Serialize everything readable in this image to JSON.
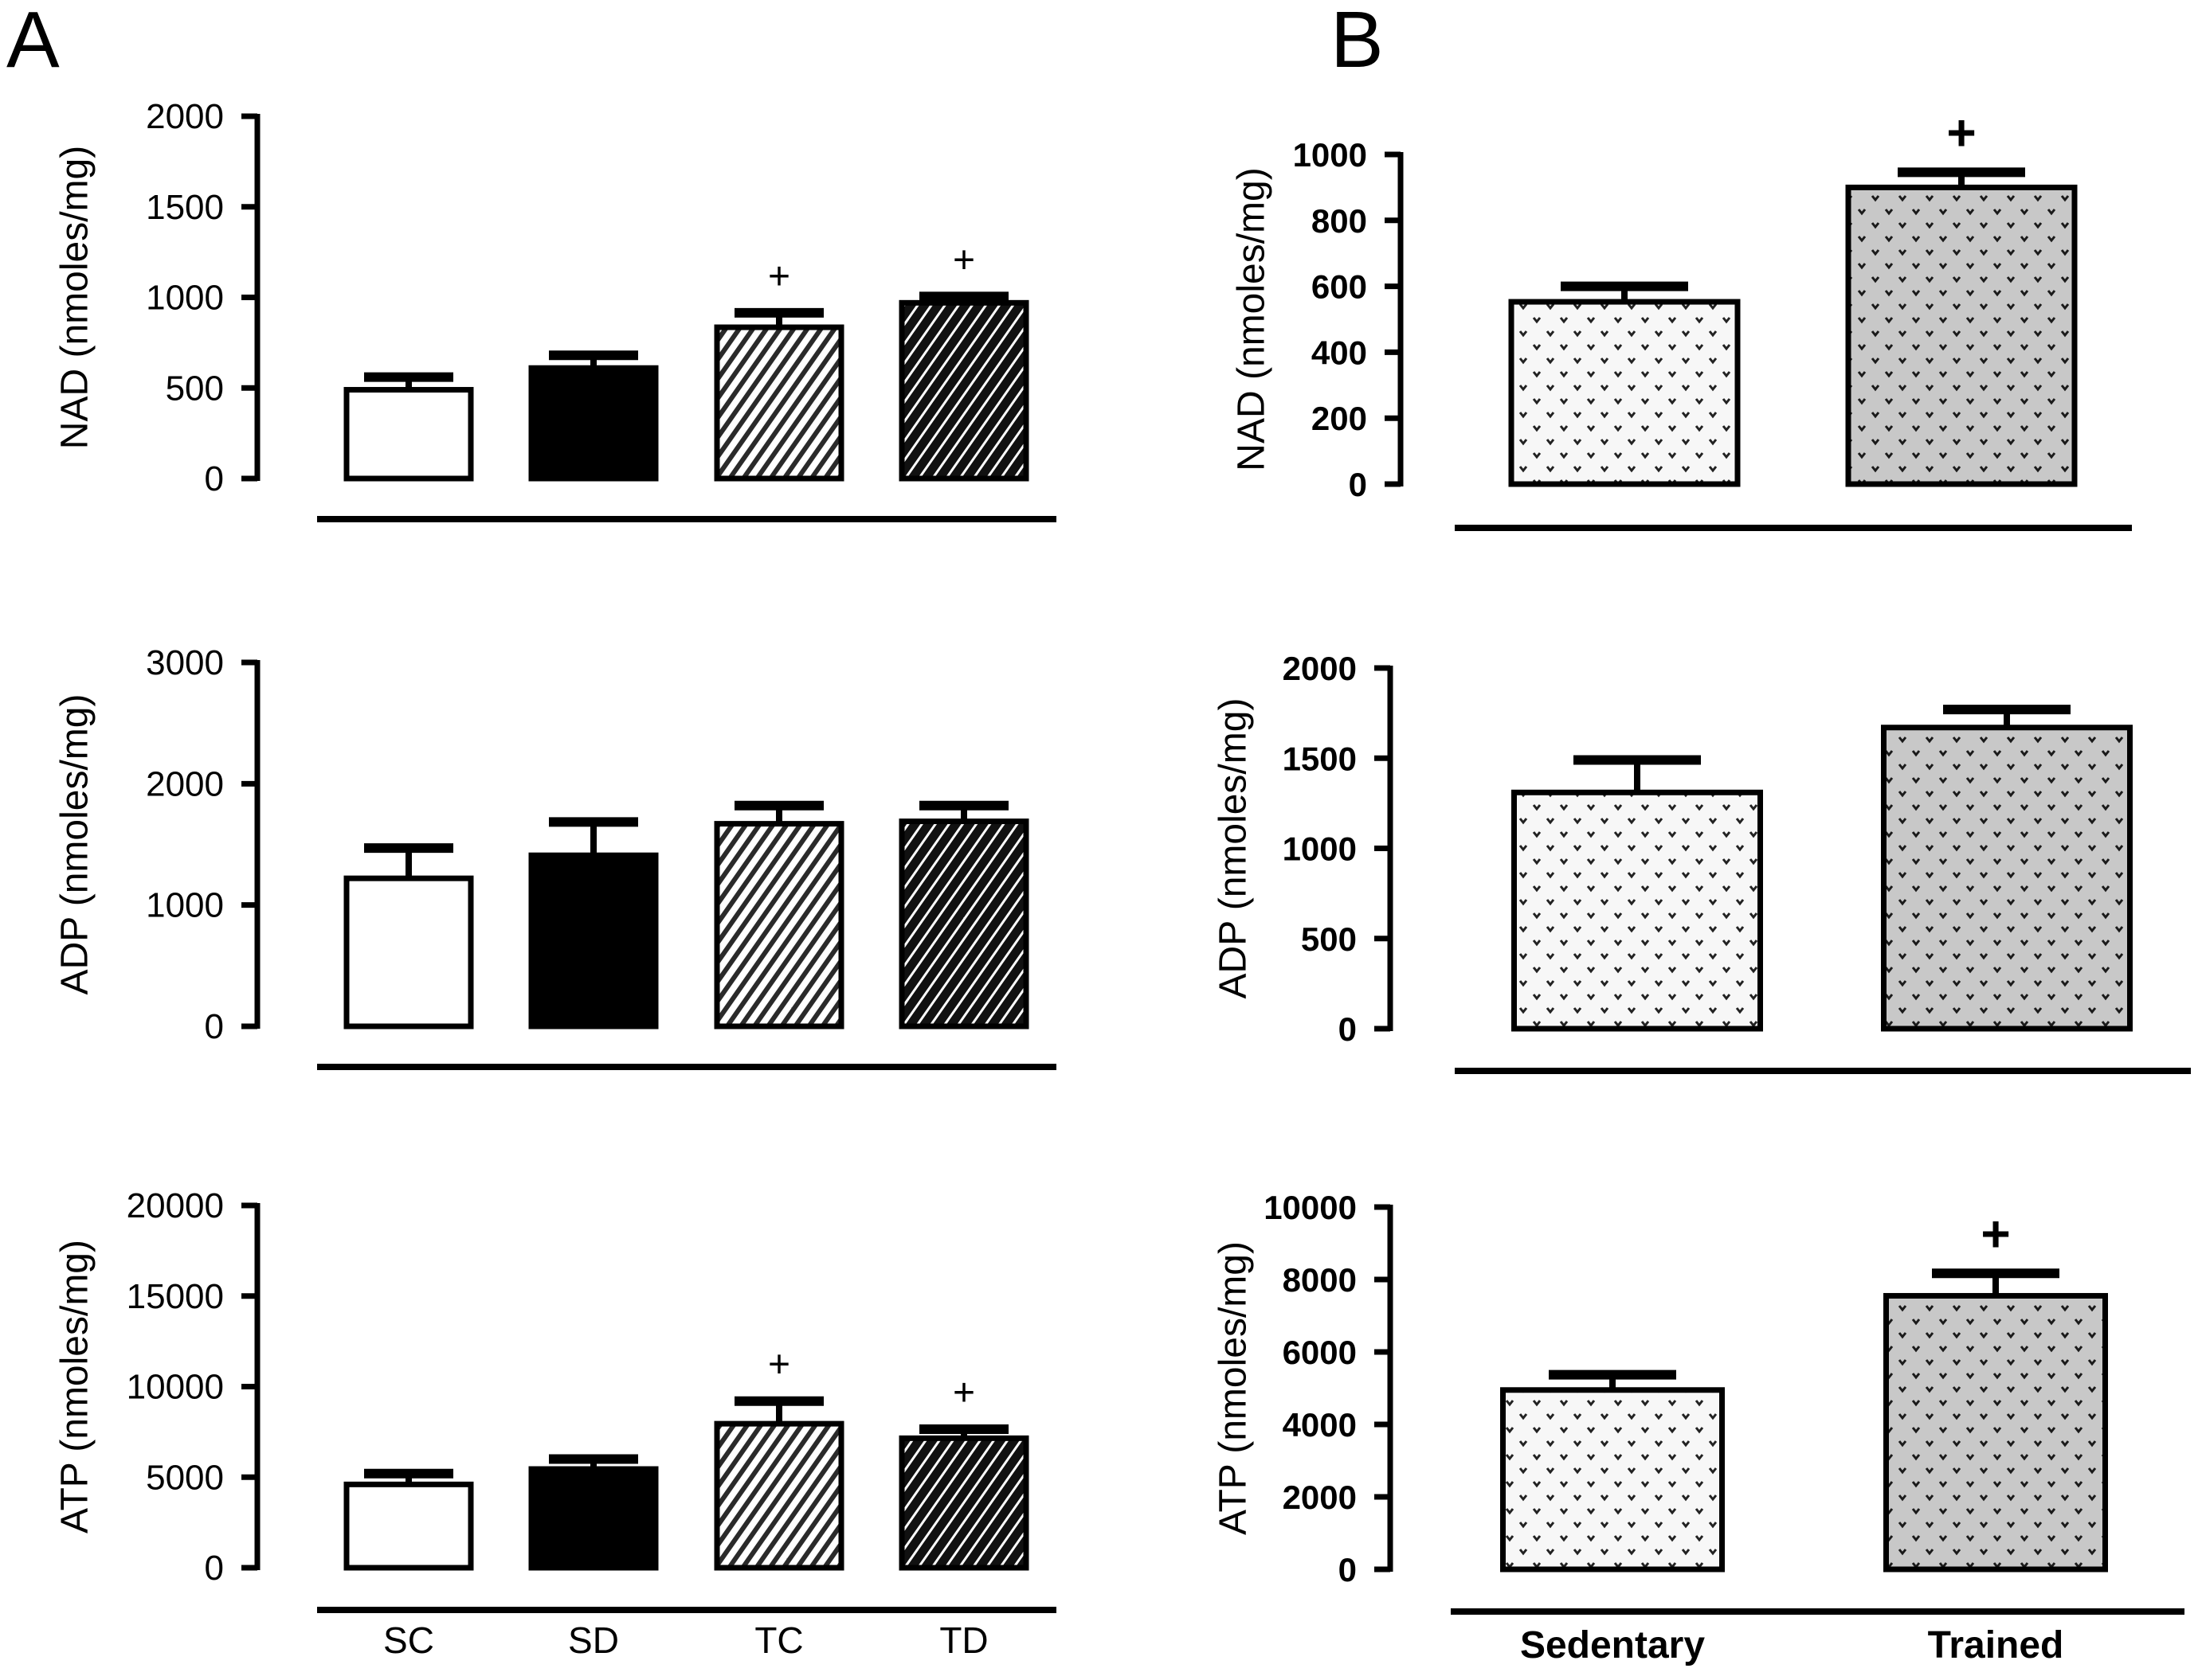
{
  "panel_labels": [
    "A",
    "B"
  ],
  "chart_data": [
    {
      "type": "bar",
      "panel": "A",
      "title": "",
      "xlabel": "",
      "ylabel": "NAD (nmoles/mg)",
      "categories": [
        "SC",
        "SD",
        "TC",
        "TD"
      ],
      "values": [
        490,
        610,
        835,
        970
      ],
      "error_upper": [
        560,
        680,
        915,
        1005
      ],
      "significance": [
        "",
        "",
        "+",
        "+"
      ],
      "ylim": [
        0,
        2000
      ],
      "yticks": [
        0,
        500,
        1000,
        1500,
        2000
      ],
      "fills": [
        "white",
        "black",
        "light-hatch",
        "dark-hatch"
      ],
      "show_category_labels": false
    },
    {
      "type": "bar",
      "panel": "A",
      "title": "",
      "xlabel": "",
      "ylabel": "ADP (nmoles/mg)",
      "categories": [
        "SC",
        "SD",
        "TC",
        "TD"
      ],
      "values": [
        1220,
        1410,
        1670,
        1690
      ],
      "error_upper": [
        1470,
        1685,
        1820,
        1820
      ],
      "significance": [
        "",
        "",
        "",
        ""
      ],
      "ylim": [
        0,
        3000
      ],
      "yticks": [
        0,
        1000,
        2000,
        3000
      ],
      "fills": [
        "white",
        "black",
        "light-hatch",
        "dark-hatch"
      ],
      "show_category_labels": false
    },
    {
      "type": "bar",
      "panel": "A",
      "title": "",
      "xlabel": "",
      "ylabel": "ATP (nmoles/mg)",
      "categories": [
        "SC",
        "SD",
        "TC",
        "TD"
      ],
      "values": [
        4600,
        5450,
        7950,
        7150
      ],
      "error_upper": [
        5200,
        6000,
        9200,
        7650
      ],
      "significance": [
        "",
        "",
        "+",
        "+"
      ],
      "ylim": [
        0,
        20000
      ],
      "yticks": [
        0,
        5000,
        10000,
        15000,
        20000
      ],
      "fills": [
        "white",
        "black",
        "light-hatch",
        "dark-hatch"
      ],
      "show_category_labels": true
    },
    {
      "type": "bar",
      "panel": "B",
      "title": "",
      "xlabel": "",
      "ylabel": "NAD (nmoles/mg)",
      "categories": [
        "Sedentary",
        "Trained"
      ],
      "values": [
        553,
        900
      ],
      "error_upper": [
        600,
        946
      ],
      "significance": [
        "",
        "+"
      ],
      "ylim": [
        0,
        1000
      ],
      "yticks": [
        0,
        200,
        400,
        600,
        800,
        1000
      ],
      "fills": [
        "light-dots",
        "gray-dots"
      ],
      "show_category_labels": false
    },
    {
      "type": "bar",
      "panel": "B",
      "title": "",
      "xlabel": "",
      "ylabel": "ADP (nmoles/mg)",
      "categories": [
        "Sedentary",
        "Trained"
      ],
      "values": [
        1310,
        1670
      ],
      "error_upper": [
        1490,
        1770
      ],
      "significance": [
        "",
        ""
      ],
      "ylim": [
        0,
        2000
      ],
      "yticks": [
        0,
        500,
        1000,
        1500,
        2000
      ],
      "fills": [
        "light-dots",
        "gray-dots"
      ],
      "show_category_labels": false
    },
    {
      "type": "bar",
      "panel": "B",
      "title": "",
      "xlabel": "",
      "ylabel": "ATP (nmoles/mg)",
      "categories": [
        "Sedentary",
        "Trained"
      ],
      "values": [
        4950,
        7550
      ],
      "error_upper": [
        5370,
        8170
      ],
      "significance": [
        "",
        "+"
      ],
      "ylim": [
        0,
        10000
      ],
      "yticks": [
        0,
        2000,
        4000,
        6000,
        8000,
        10000
      ],
      "fills": [
        "light-dots",
        "gray-dots"
      ],
      "show_category_labels": true
    }
  ],
  "colors": {
    "ink": "#000000",
    "background": "#ffffff",
    "gray_fill": "#c8c8c8",
    "light_fill": "#f7f7f7"
  }
}
